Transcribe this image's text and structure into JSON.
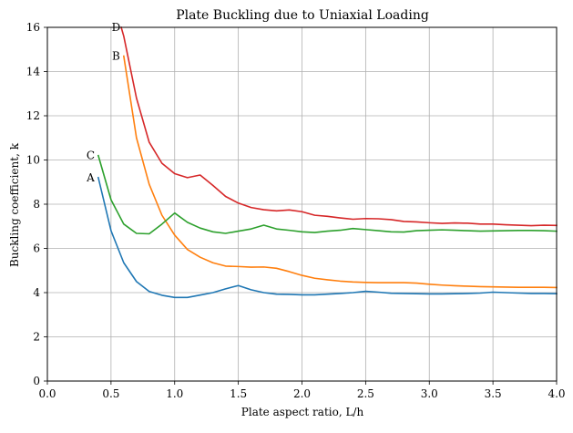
{
  "chart_data": {
    "type": "line",
    "title": "Plate Buckling due to Uniaxial Loading",
    "xlabel": "Plate aspect ratio, L/h",
    "ylabel": "Buckling coefficient, k",
    "xlim": [
      0,
      4
    ],
    "ylim": [
      0,
      16
    ],
    "xticks": [
      0.0,
      0.5,
      1.0,
      1.5,
      2.0,
      2.5,
      3.0,
      3.5,
      4.0
    ],
    "xtick_labels": [
      "0.0",
      "0.5",
      "1.0",
      "1.5",
      "2.0",
      "2.5",
      "3.0",
      "3.5",
      "4.0"
    ],
    "yticks": [
      0,
      2,
      4,
      6,
      8,
      10,
      12,
      14,
      16
    ],
    "ytick_labels": [
      "0",
      "2",
      "4",
      "6",
      "8",
      "10",
      "12",
      "14",
      "16"
    ],
    "grid": true,
    "colors": {
      "A": "#1f77b4",
      "B": "#ff7f0e",
      "C": "#2ca02c",
      "D": "#d62728"
    },
    "series": [
      {
        "name": "A",
        "x": [
          0.4,
          0.5,
          0.6,
          0.7,
          0.8,
          0.9,
          1.0,
          1.1,
          1.2,
          1.3,
          1.4,
          1.5,
          1.6,
          1.7,
          1.8,
          1.9,
          2.0,
          2.1,
          2.2,
          2.3,
          2.4,
          2.5,
          2.6,
          2.7,
          2.8,
          2.9,
          3.0,
          3.1,
          3.2,
          3.3,
          3.4,
          3.5,
          3.6,
          3.7,
          3.8,
          3.9,
          4.0
        ],
        "y": [
          9.2,
          6.8,
          5.35,
          4.5,
          4.05,
          3.88,
          3.78,
          3.78,
          3.89,
          4.0,
          4.17,
          4.32,
          4.13,
          4.0,
          3.93,
          3.92,
          3.9,
          3.9,
          3.93,
          3.96,
          4.0,
          4.06,
          4.02,
          3.97,
          3.96,
          3.95,
          3.94,
          3.94,
          3.95,
          3.96,
          3.98,
          4.02,
          4.0,
          3.98,
          3.96,
          3.96,
          3.95
        ]
      },
      {
        "name": "B",
        "x": [
          0.6,
          0.7,
          0.8,
          0.9,
          1.0,
          1.1,
          1.2,
          1.3,
          1.4,
          1.5,
          1.6,
          1.7,
          1.8,
          1.9,
          2.0,
          2.1,
          2.2,
          2.3,
          2.4,
          2.5,
          2.6,
          2.7,
          2.8,
          2.9,
          3.0,
          3.1,
          3.2,
          3.3,
          3.4,
          3.5,
          3.6,
          3.7,
          3.8,
          3.9,
          4.0
        ],
        "y": [
          14.7,
          11.0,
          8.9,
          7.5,
          6.6,
          5.95,
          5.6,
          5.35,
          5.2,
          5.18,
          5.15,
          5.16,
          5.1,
          4.95,
          4.78,
          4.65,
          4.58,
          4.52,
          4.48,
          4.46,
          4.45,
          4.45,
          4.45,
          4.43,
          4.38,
          4.34,
          4.31,
          4.29,
          4.27,
          4.26,
          4.25,
          4.24,
          4.24,
          4.24,
          4.23
        ]
      },
      {
        "name": "C",
        "x": [
          0.4,
          0.5,
          0.6,
          0.7,
          0.8,
          0.9,
          1.0,
          1.1,
          1.2,
          1.3,
          1.4,
          1.5,
          1.6,
          1.7,
          1.8,
          1.9,
          2.0,
          2.1,
          2.2,
          2.3,
          2.4,
          2.5,
          2.6,
          2.7,
          2.8,
          2.9,
          3.0,
          3.1,
          3.2,
          3.3,
          3.4,
          3.5,
          3.6,
          3.7,
          3.8,
          3.9,
          4.0
        ],
        "y": [
          10.2,
          8.2,
          7.1,
          6.68,
          6.66,
          7.1,
          7.6,
          7.18,
          6.92,
          6.75,
          6.68,
          6.78,
          6.88,
          7.05,
          6.88,
          6.82,
          6.75,
          6.72,
          6.78,
          6.82,
          6.9,
          6.85,
          6.8,
          6.75,
          6.74,
          6.8,
          6.82,
          6.84,
          6.82,
          6.8,
          6.78,
          6.79,
          6.8,
          6.81,
          6.81,
          6.8,
          6.78
        ]
      },
      {
        "name": "D",
        "x": [
          0.58,
          0.6,
          0.7,
          0.8,
          0.9,
          1.0,
          1.1,
          1.2,
          1.3,
          1.4,
          1.5,
          1.6,
          1.7,
          1.8,
          1.9,
          2.0,
          2.1,
          2.2,
          2.3,
          2.4,
          2.5,
          2.6,
          2.7,
          2.8,
          2.9,
          3.0,
          3.1,
          3.2,
          3.3,
          3.4,
          3.5,
          3.6,
          3.7,
          3.8,
          3.9,
          4.0
        ],
        "y": [
          16.0,
          15.6,
          12.8,
          10.8,
          9.85,
          9.38,
          9.2,
          9.32,
          8.85,
          8.35,
          8.05,
          7.85,
          7.75,
          7.7,
          7.74,
          7.66,
          7.5,
          7.45,
          7.38,
          7.32,
          7.35,
          7.34,
          7.3,
          7.22,
          7.2,
          7.16,
          7.13,
          7.15,
          7.14,
          7.1,
          7.1,
          7.07,
          7.05,
          7.03,
          7.05,
          7.04
        ]
      }
    ],
    "annotations": [
      {
        "text": "A",
        "x": 0.34,
        "y": 9.2
      },
      {
        "text": "B",
        "x": 0.54,
        "y": 14.7
      },
      {
        "text": "C",
        "x": 0.34,
        "y": 10.2
      },
      {
        "text": "D",
        "x": 0.54,
        "y": 16.0
      }
    ]
  }
}
